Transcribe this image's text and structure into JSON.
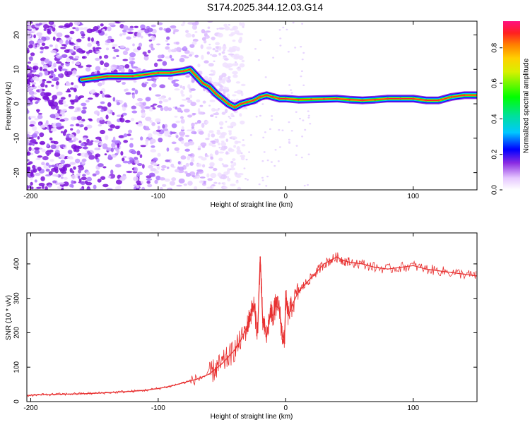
{
  "title": "S174.2025.344.12.03.G14",
  "chart_data": [
    {
      "type": "heatmap",
      "name": "spectrogram",
      "xlabel": "Height of straight line (km)",
      "ylabel": "Frequency (Hz)",
      "xlim": [
        -203,
        150
      ],
      "ylim": [
        -25,
        24
      ],
      "xticks": [
        -200,
        -100,
        0,
        100
      ],
      "xtick_labels": [
        "-200",
        "-100",
        "0",
        "100"
      ],
      "yticks": [
        -20,
        -10,
        0,
        10,
        20
      ],
      "ytick_labels": [
        "-20",
        "-10",
        "0",
        "10",
        "20"
      ],
      "colorbar": {
        "label": "Normalized spectral amplitude",
        "range": [
          0,
          0.95
        ],
        "ticks": [
          0,
          0.2,
          0.4,
          0.6,
          0.8
        ],
        "tick_labels": [
          "0.0",
          "0.2",
          "0.4",
          "0.6",
          "0.8"
        ]
      },
      "ridge": {
        "x": [
          -160,
          -140,
          -120,
          -100,
          -90,
          -80,
          -75,
          -70,
          -65,
          -60,
          -55,
          -50,
          -45,
          -40,
          -35,
          -30,
          -25,
          -20,
          -15,
          -10,
          -5,
          0,
          10,
          20,
          30,
          40,
          50,
          60,
          70,
          80,
          90,
          100,
          110,
          120,
          130,
          140,
          150
        ],
        "frequency": [
          7,
          8,
          8,
          9,
          9,
          9.5,
          10,
          8,
          6,
          5,
          3,
          1.5,
          0,
          -1,
          0,
          0.5,
          1,
          2,
          2.5,
          2,
          1.5,
          1.5,
          1.2,
          1.3,
          1.4,
          1.5,
          1.2,
          1,
          1.2,
          1.5,
          1.5,
          1.5,
          1,
          1,
          2,
          2.5,
          2.5
        ]
      }
    },
    {
      "type": "line",
      "name": "snr",
      "xlabel": "Height of straight line (km)",
      "ylabel": "SNR (10 * v/v)",
      "xlim": [
        -203,
        150
      ],
      "ylim": [
        0,
        490
      ],
      "xticks": [
        -200,
        -100,
        0,
        100
      ],
      "xtick_labels": [
        "-200",
        "-100",
        "0",
        "100"
      ],
      "yticks": [
        0,
        100,
        200,
        300,
        400
      ],
      "ytick_labels": [
        "0",
        "100",
        "200",
        "300",
        "400"
      ],
      "series": [
        {
          "name": "SNR",
          "color": "#e83030",
          "x": [
            -203,
            -190,
            -180,
            -170,
            -160,
            -150,
            -140,
            -130,
            -120,
            -110,
            -100,
            -90,
            -80,
            -70,
            -60,
            -55,
            -50,
            -45,
            -40,
            -35,
            -30,
            -28,
            -25,
            -22,
            -20,
            -18,
            -15,
            -12,
            -10,
            -8,
            -5,
            -3,
            -1,
            0,
            2,
            5,
            10,
            15,
            20,
            25,
            30,
            35,
            40,
            45,
            50,
            60,
            70,
            80,
            90,
            100,
            110,
            120,
            130,
            140,
            150
          ],
          "values": [
            18,
            20,
            21,
            22,
            23,
            24,
            26,
            28,
            30,
            33,
            38,
            45,
            55,
            65,
            80,
            95,
            110,
            130,
            150,
            180,
            220,
            250,
            280,
            200,
            420,
            230,
            190,
            260,
            250,
            280,
            270,
            200,
            170,
            300,
            250,
            280,
            320,
            340,
            360,
            380,
            400,
            410,
            420,
            410,
            405,
            400,
            390,
            385,
            390,
            395,
            385,
            380,
            375,
            370,
            365
          ]
        }
      ]
    }
  ]
}
